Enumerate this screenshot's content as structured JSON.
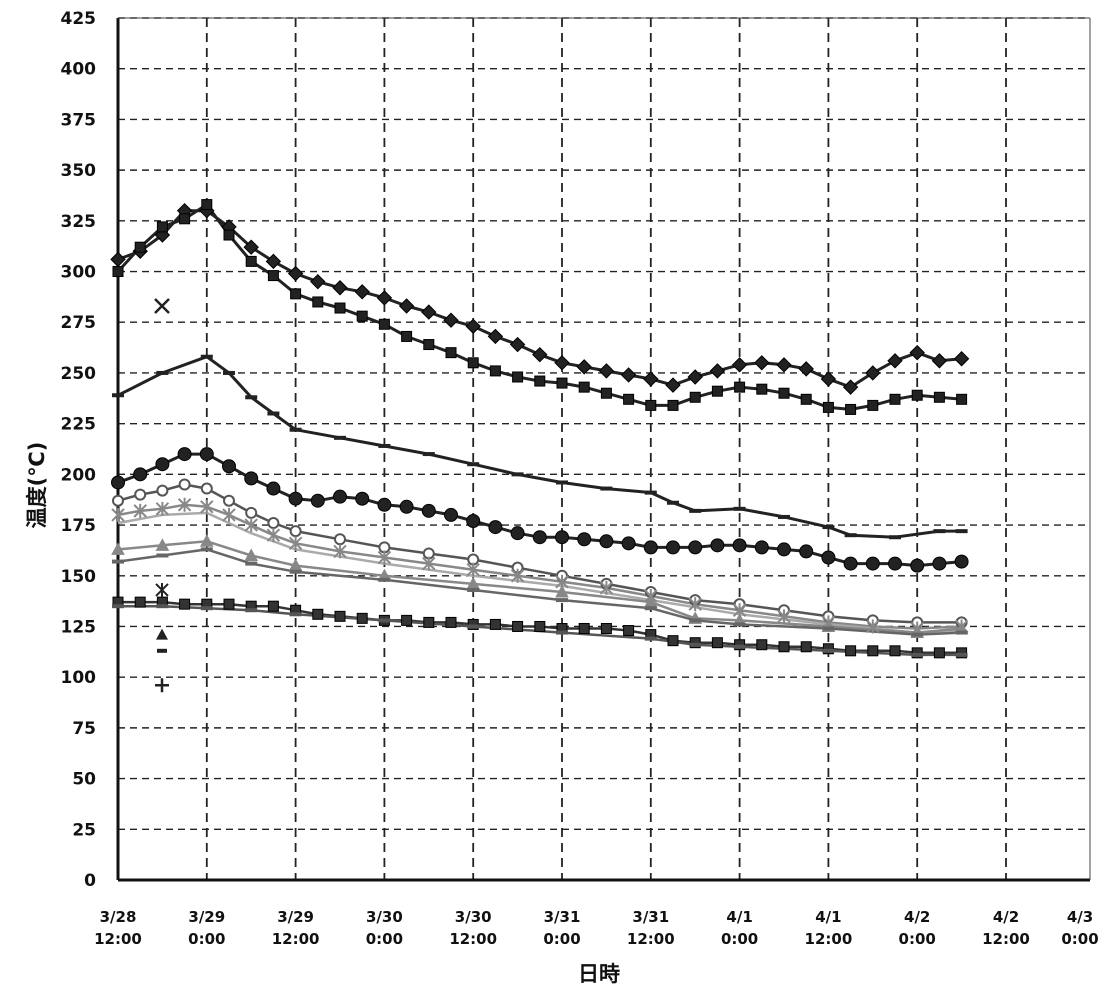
{
  "chart_data": {
    "type": "line",
    "xlabel": "日時",
    "ylabel": "温度(℃)",
    "ylim": [
      0,
      425
    ],
    "y_ticks": [
      0,
      25,
      50,
      75,
      100,
      125,
      150,
      175,
      200,
      225,
      250,
      275,
      300,
      325,
      350,
      375,
      400,
      425
    ],
    "x_ticks": [
      {
        "line1": "3/28",
        "line2": "12:00"
      },
      {
        "line1": "3/29",
        "line2": "0:00"
      },
      {
        "line1": "3/29",
        "line2": "12:00"
      },
      {
        "line1": "3/30",
        "line2": "0:00"
      },
      {
        "line1": "3/30",
        "line2": "12:00"
      },
      {
        "line1": "3/31",
        "line2": "0:00"
      },
      {
        "line1": "3/31",
        "line2": "12:00"
      },
      {
        "line1": "4/1",
        "line2": "0:00"
      },
      {
        "line1": "4/1",
        "line2": "12:00"
      },
      {
        "line1": "4/2",
        "line2": "0:00"
      },
      {
        "line1": "4/2",
        "line2": "12:00"
      },
      {
        "line1": "4/3",
        "line2": "0:00"
      }
    ],
    "x_unit": "hours after 3/28 12:00",
    "grid": true,
    "series": [
      {
        "marker": "diamond",
        "color": "#222222",
        "points": [
          [
            0,
            306
          ],
          [
            3,
            310
          ],
          [
            6,
            318
          ],
          [
            9,
            330
          ],
          [
            12,
            330
          ],
          [
            15,
            322
          ],
          [
            18,
            312
          ],
          [
            21,
            305
          ],
          [
            24,
            299
          ],
          [
            27,
            295
          ],
          [
            30,
            292
          ],
          [
            33,
            290
          ],
          [
            36,
            287
          ],
          [
            39,
            283
          ],
          [
            42,
            280
          ],
          [
            45,
            276
          ],
          [
            48,
            273
          ],
          [
            51,
            268
          ],
          [
            54,
            264
          ],
          [
            57,
            259
          ],
          [
            60,
            255
          ],
          [
            63,
            253
          ],
          [
            66,
            251
          ],
          [
            69,
            249
          ],
          [
            72,
            247
          ],
          [
            75,
            244
          ],
          [
            78,
            248
          ],
          [
            81,
            251
          ],
          [
            84,
            254
          ],
          [
            87,
            255
          ],
          [
            90,
            254
          ],
          [
            93,
            252
          ],
          [
            96,
            247
          ],
          [
            99,
            243
          ],
          [
            102,
            250
          ],
          [
            105,
            256
          ],
          [
            108,
            260
          ],
          [
            111,
            256
          ],
          [
            114,
            257
          ]
        ]
      },
      {
        "marker": "square",
        "color": "#222222",
        "points": [
          [
            0,
            300
          ],
          [
            3,
            312
          ],
          [
            6,
            322
          ],
          [
            9,
            326
          ],
          [
            12,
            333
          ],
          [
            15,
            318
          ],
          [
            18,
            305
          ],
          [
            21,
            298
          ],
          [
            24,
            289
          ],
          [
            27,
            285
          ],
          [
            30,
            282
          ],
          [
            33,
            278
          ],
          [
            36,
            274
          ],
          [
            39,
            268
          ],
          [
            42,
            264
          ],
          [
            45,
            260
          ],
          [
            48,
            255
          ],
          [
            51,
            251
          ],
          [
            54,
            248
          ],
          [
            57,
            246
          ],
          [
            60,
            245
          ],
          [
            63,
            243
          ],
          [
            66,
            240
          ],
          [
            69,
            237
          ],
          [
            72,
            234
          ],
          [
            75,
            234
          ],
          [
            78,
            238
          ],
          [
            81,
            241
          ],
          [
            84,
            243
          ],
          [
            87,
            242
          ],
          [
            90,
            240
          ],
          [
            93,
            237
          ],
          [
            96,
            233
          ],
          [
            99,
            232
          ],
          [
            102,
            234
          ],
          [
            105,
            237
          ],
          [
            108,
            239
          ],
          [
            111,
            238
          ],
          [
            114,
            237
          ]
        ]
      },
      {
        "marker": "dash",
        "color": "#222222",
        "points": [
          [
            0,
            239
          ],
          [
            6,
            250
          ],
          [
            12,
            258
          ],
          [
            15,
            250
          ],
          [
            18,
            238
          ],
          [
            21,
            230
          ],
          [
            24,
            222
          ],
          [
            30,
            218
          ],
          [
            36,
            214
          ],
          [
            42,
            210
          ],
          [
            48,
            205
          ],
          [
            54,
            200
          ],
          [
            60,
            196
          ],
          [
            66,
            193
          ],
          [
            72,
            191
          ],
          [
            75,
            186
          ],
          [
            78,
            182
          ],
          [
            84,
            183
          ],
          [
            90,
            179
          ],
          [
            96,
            174
          ],
          [
            99,
            170
          ],
          [
            105,
            169
          ],
          [
            111,
            172
          ],
          [
            114,
            172
          ]
        ]
      },
      {
        "marker": "circle",
        "color": "#222222",
        "points": [
          [
            0,
            196
          ],
          [
            3,
            200
          ],
          [
            6,
            205
          ],
          [
            9,
            210
          ],
          [
            12,
            210
          ],
          [
            15,
            204
          ],
          [
            18,
            198
          ],
          [
            21,
            193
          ],
          [
            24,
            188
          ],
          [
            27,
            187
          ],
          [
            30,
            189
          ],
          [
            33,
            188
          ],
          [
            36,
            185
          ],
          [
            39,
            184
          ],
          [
            42,
            182
          ],
          [
            45,
            180
          ],
          [
            48,
            177
          ],
          [
            51,
            174
          ],
          [
            54,
            171
          ],
          [
            57,
            169
          ],
          [
            60,
            169
          ],
          [
            63,
            168
          ],
          [
            66,
            167
          ],
          [
            69,
            166
          ],
          [
            72,
            164
          ],
          [
            75,
            164
          ],
          [
            78,
            164
          ],
          [
            81,
            165
          ],
          [
            84,
            165
          ],
          [
            87,
            164
          ],
          [
            90,
            163
          ],
          [
            93,
            162
          ],
          [
            96,
            159
          ],
          [
            99,
            156
          ],
          [
            102,
            156
          ],
          [
            105,
            156
          ],
          [
            108,
            155
          ],
          [
            111,
            156
          ],
          [
            114,
            157
          ]
        ]
      },
      {
        "marker": "circle-open",
        "color": "#555555",
        "points": [
          [
            0,
            187
          ],
          [
            3,
            190
          ],
          [
            6,
            192
          ],
          [
            9,
            195
          ],
          [
            12,
            193
          ],
          [
            15,
            187
          ],
          [
            18,
            181
          ],
          [
            21,
            176
          ],
          [
            24,
            172
          ],
          [
            30,
            168
          ],
          [
            36,
            164
          ],
          [
            42,
            161
          ],
          [
            48,
            158
          ],
          [
            54,
            154
          ],
          [
            60,
            150
          ],
          [
            66,
            146
          ],
          [
            72,
            142
          ],
          [
            78,
            138
          ],
          [
            84,
            136
          ],
          [
            90,
            133
          ],
          [
            96,
            130
          ],
          [
            102,
            128
          ],
          [
            108,
            127
          ],
          [
            114,
            127
          ]
        ]
      },
      {
        "marker": "star",
        "color": "#888888",
        "points": [
          [
            0,
            180
          ],
          [
            3,
            182
          ],
          [
            6,
            183
          ],
          [
            9,
            185
          ],
          [
            12,
            184
          ],
          [
            15,
            180
          ],
          [
            18,
            175
          ],
          [
            21,
            170
          ],
          [
            24,
            166
          ],
          [
            30,
            162
          ],
          [
            36,
            159
          ],
          [
            42,
            156
          ],
          [
            48,
            153
          ],
          [
            54,
            150
          ],
          [
            60,
            147
          ],
          [
            66,
            144
          ],
          [
            72,
            140
          ],
          [
            78,
            136
          ],
          [
            84,
            133
          ],
          [
            90,
            130
          ],
          [
            96,
            127
          ],
          [
            102,
            125
          ],
          [
            108,
            124
          ],
          [
            114,
            125
          ]
        ]
      },
      {
        "marker": "none",
        "color": "#aaaaaa",
        "points": [
          [
            0,
            176
          ],
          [
            6,
            180
          ],
          [
            12,
            181
          ],
          [
            18,
            171
          ],
          [
            24,
            163
          ],
          [
            36,
            156
          ],
          [
            48,
            150
          ],
          [
            60,
            145
          ],
          [
            72,
            138
          ],
          [
            84,
            131
          ],
          [
            96,
            126
          ],
          [
            108,
            122
          ],
          [
            114,
            123
          ]
        ]
      },
      {
        "marker": "triangle",
        "color": "#888888",
        "points": [
          [
            0,
            163
          ],
          [
            6,
            165
          ],
          [
            12,
            167
          ],
          [
            18,
            160
          ],
          [
            24,
            155
          ],
          [
            36,
            150
          ],
          [
            48,
            146
          ],
          [
            60,
            142
          ],
          [
            72,
            137
          ],
          [
            78,
            129
          ],
          [
            84,
            128
          ],
          [
            96,
            125
          ],
          [
            108,
            122
          ],
          [
            114,
            124
          ]
        ]
      },
      {
        "marker": "dash",
        "color": "#666666",
        "points": [
          [
            0,
            157
          ],
          [
            6,
            160
          ],
          [
            12,
            163
          ],
          [
            18,
            156
          ],
          [
            24,
            152
          ],
          [
            36,
            148
          ],
          [
            48,
            143
          ],
          [
            60,
            138
          ],
          [
            72,
            134
          ],
          [
            78,
            128
          ],
          [
            84,
            126
          ],
          [
            96,
            124
          ],
          [
            108,
            121
          ],
          [
            114,
            122
          ]
        ]
      },
      {
        "marker": "square",
        "color": "#333333",
        "points": [
          [
            0,
            137
          ],
          [
            3,
            137
          ],
          [
            6,
            137
          ],
          [
            9,
            136
          ],
          [
            12,
            136
          ],
          [
            15,
            136
          ],
          [
            18,
            135
          ],
          [
            21,
            135
          ],
          [
            24,
            133
          ],
          [
            27,
            131
          ],
          [
            30,
            130
          ],
          [
            33,
            129
          ],
          [
            36,
            128
          ],
          [
            39,
            128
          ],
          [
            42,
            127
          ],
          [
            45,
            127
          ],
          [
            48,
            126
          ],
          [
            51,
            126
          ],
          [
            54,
            125
          ],
          [
            57,
            125
          ],
          [
            60,
            124
          ],
          [
            63,
            124
          ],
          [
            66,
            124
          ],
          [
            69,
            123
          ],
          [
            72,
            121
          ],
          [
            75,
            118
          ],
          [
            78,
            117
          ],
          [
            81,
            117
          ],
          [
            84,
            116
          ],
          [
            87,
            116
          ],
          [
            90,
            115
          ],
          [
            93,
            115
          ],
          [
            96,
            114
          ],
          [
            99,
            113
          ],
          [
            102,
            113
          ],
          [
            105,
            113
          ],
          [
            108,
            112
          ],
          [
            111,
            112
          ],
          [
            114,
            112
          ]
        ]
      },
      {
        "marker": "dash",
        "color": "#555555",
        "points": [
          [
            0,
            135
          ],
          [
            6,
            135
          ],
          [
            12,
            134
          ],
          [
            18,
            133
          ],
          [
            24,
            131
          ],
          [
            36,
            128
          ],
          [
            48,
            125
          ],
          [
            60,
            122
          ],
          [
            72,
            119
          ],
          [
            78,
            116
          ],
          [
            84,
            115
          ],
          [
            96,
            113
          ],
          [
            108,
            111
          ],
          [
            114,
            111
          ]
        ]
      }
    ]
  }
}
